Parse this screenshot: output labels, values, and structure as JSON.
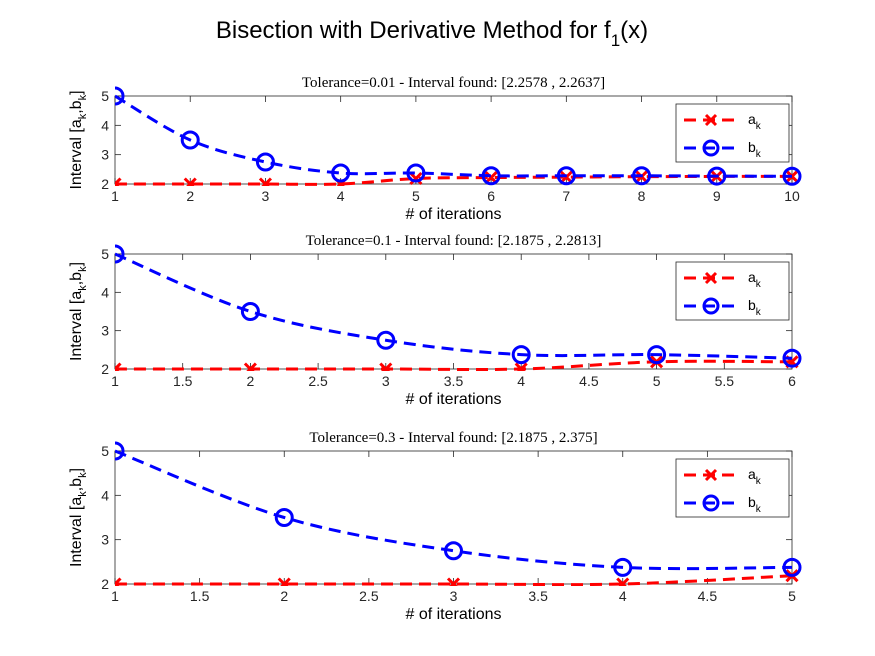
{
  "figure_title": "Bisection with Derivative Method for f",
  "figure_title_sub": "1",
  "figure_title_tail": "(x)",
  "chart_data": [
    {
      "type": "line",
      "title": "Tolerance=0.01 - Interval found: [2.2578 , 2.2637]",
      "xlabel": "# of iterations",
      "ylabel": "Interval [a",
      "ylabel_sub": "k",
      "ylabel_mid": ",b",
      "ylabel_tail": "]",
      "xlim": [
        1,
        10
      ],
      "ylim": [
        2,
        5
      ],
      "xticks": [
        "1",
        "2",
        "3",
        "4",
        "5",
        "6",
        "7",
        "8",
        "9",
        "10"
      ],
      "yticks": [
        "2",
        "3",
        "4",
        "5"
      ],
      "legend_position": "top-right",
      "grid": false,
      "x": [
        1,
        2,
        3,
        4,
        5,
        6,
        7,
        8,
        9,
        10
      ],
      "series": [
        {
          "name": "a",
          "name_sub": "k",
          "color": "#ff0000",
          "marker": "x",
          "line": "dashed",
          "values": [
            2,
            2,
            2,
            2,
            2.1875,
            2.2188,
            2.2344,
            2.25,
            2.2578,
            2.2578
          ]
        },
        {
          "name": "b",
          "name_sub": "k",
          "color": "#0000ff",
          "marker": "o",
          "line": "dashed",
          "values": [
            5,
            3.5,
            2.75,
            2.375,
            2.375,
            2.2813,
            2.2813,
            2.2813,
            2.2695,
            2.2637
          ]
        }
      ]
    },
    {
      "type": "line",
      "title": "Tolerance=0.1 - Interval found: [2.1875 , 2.2813]",
      "xlabel": "# of iterations",
      "ylabel": "Interval [a",
      "ylabel_sub": "k",
      "ylabel_mid": ",b",
      "ylabel_tail": "]",
      "xlim": [
        1,
        6
      ],
      "ylim": [
        2,
        5
      ],
      "xticks": [
        "1",
        "1.5",
        "2",
        "2.5",
        "3",
        "3.5",
        "4",
        "4.5",
        "5",
        "5.5",
        "6"
      ],
      "yticks": [
        "2",
        "3",
        "4",
        "5"
      ],
      "legend_position": "top-right",
      "grid": false,
      "x": [
        1,
        2,
        3,
        4,
        5,
        6
      ],
      "series": [
        {
          "name": "a",
          "name_sub": "k",
          "color": "#ff0000",
          "marker": "x",
          "line": "dashed",
          "values": [
            2,
            2,
            2,
            2,
            2.1875,
            2.1875
          ]
        },
        {
          "name": "b",
          "name_sub": "k",
          "color": "#0000ff",
          "marker": "o",
          "line": "dashed",
          "values": [
            5,
            3.5,
            2.75,
            2.375,
            2.375,
            2.2813
          ]
        }
      ]
    },
    {
      "type": "line",
      "title": "Tolerance=0.3 - Interval found: [2.1875 , 2.375]",
      "xlabel": "# of iterations",
      "ylabel": "Interval [a",
      "ylabel_sub": "k",
      "ylabel_mid": ",b",
      "ylabel_tail": "]",
      "xlim": [
        1,
        5
      ],
      "ylim": [
        2,
        5
      ],
      "xticks": [
        "1",
        "1.5",
        "2",
        "2.5",
        "3",
        "3.5",
        "4",
        "4.5",
        "5"
      ],
      "yticks": [
        "2",
        "3",
        "4",
        "5"
      ],
      "legend_position": "top-right",
      "grid": false,
      "x": [
        1,
        2,
        3,
        4,
        5
      ],
      "series": [
        {
          "name": "a",
          "name_sub": "k",
          "color": "#ff0000",
          "marker": "x",
          "line": "dashed",
          "values": [
            2,
            2,
            2,
            2,
            2.1875
          ]
        },
        {
          "name": "b",
          "name_sub": "k",
          "color": "#0000ff",
          "marker": "o",
          "line": "dashed",
          "values": [
            5,
            3.5,
            2.75,
            2.375,
            2.375
          ]
        }
      ]
    }
  ]
}
